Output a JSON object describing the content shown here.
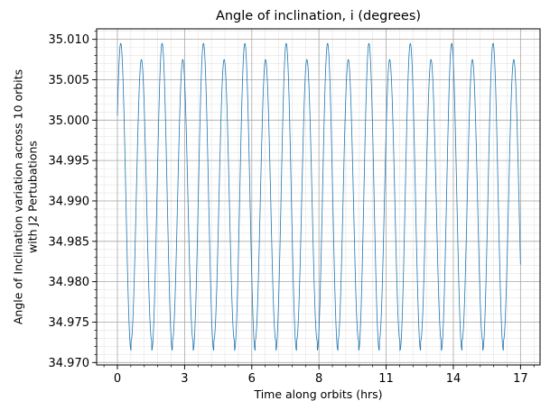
{
  "chart_data": {
    "type": "line",
    "title": "Angle of inclination, i (degrees)",
    "xlabel": "Time along orbits (hrs)",
    "ylabel_lines": [
      "Angle of Inclination variation across 10 orbits",
      "with J2 Pertubations"
    ],
    "xlim": [
      -0.85,
      17.3
    ],
    "ylim": [
      34.9697,
      35.0113
    ],
    "x_ticks": [
      0,
      2.75,
      5.5,
      8.25,
      11,
      13.75,
      16.5
    ],
    "x_tick_labels": [
      "0",
      "3",
      "6",
      "8",
      "11",
      "14",
      "17"
    ],
    "y_ticks": [
      34.97,
      34.975,
      34.98,
      34.985,
      34.99,
      34.995,
      35.0,
      35.005,
      35.01
    ],
    "y_tick_labels": [
      "34.970",
      "34.975",
      "34.980",
      "34.985",
      "34.990",
      "34.995",
      "35.000",
      "35.005",
      "35.010"
    ],
    "grid": true,
    "minor_grid": true,
    "series": [
      {
        "color": "#1f77b4",
        "x_start": 0,
        "x_end": 16.5,
        "period_hrs": 0.8467,
        "y_start": 35.0,
        "y_end": 34.9935,
        "peaks_high": 35.0095,
        "peaks_low": 35.0075,
        "troughs_low": 34.9715,
        "troughs_high": 34.9727
      }
    ]
  }
}
